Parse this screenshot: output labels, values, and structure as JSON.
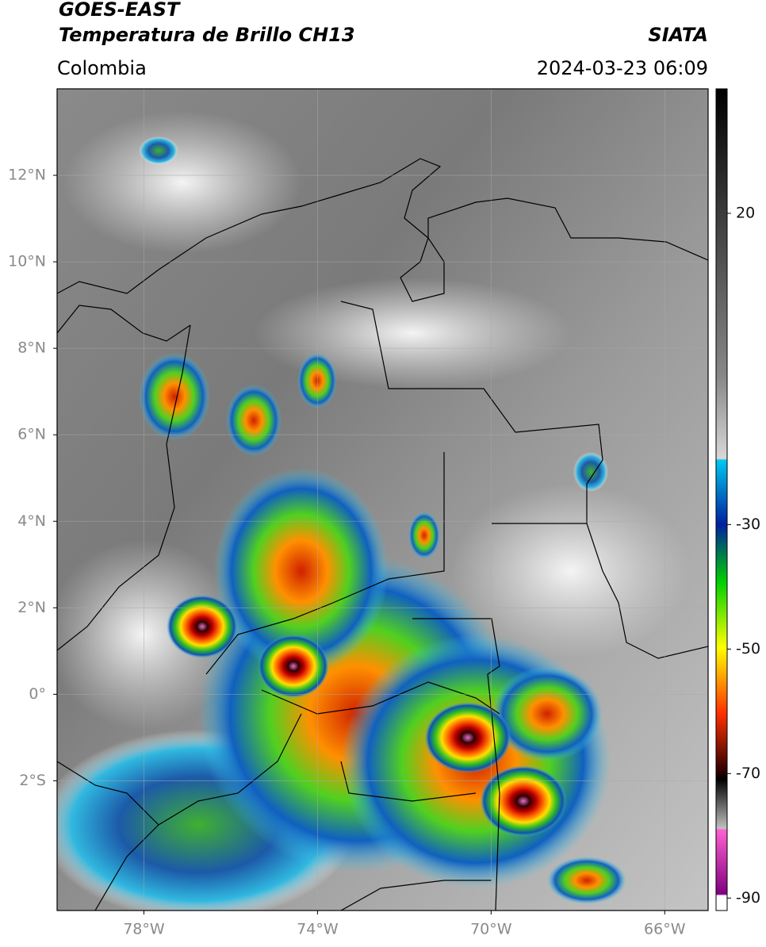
{
  "header": {
    "satellite": "GOES-EAST",
    "product": "Temperatura de Brillo CH13",
    "source": "SIATA",
    "region": "Colombia",
    "datetime": "2024-03-23 06:09"
  },
  "map": {
    "lonlim": [
      -80,
      -65
    ],
    "latlim": [
      -5,
      14
    ],
    "grid": true,
    "lonticks": [
      {
        "value": -78,
        "label": "78°W"
      },
      {
        "value": -74,
        "label": "74°W"
      },
      {
        "value": -70,
        "label": "70°W"
      },
      {
        "value": -66,
        "label": "66°W"
      }
    ],
    "latticks": [
      {
        "value": 12,
        "label": "12°N"
      },
      {
        "value": 10,
        "label": "10°N"
      },
      {
        "value": 8,
        "label": "8°N"
      },
      {
        "value": 6,
        "label": "6°N"
      },
      {
        "value": 4,
        "label": "4°N"
      },
      {
        "value": 2,
        "label": "2°N"
      },
      {
        "value": 0,
        "label": "0°"
      },
      {
        "value": -2,
        "label": "2°S"
      }
    ]
  },
  "colorbar": {
    "lim": [
      -92,
      40
    ],
    "ticks": [
      20,
      -30,
      -50,
      -70,
      -90
    ]
  }
}
